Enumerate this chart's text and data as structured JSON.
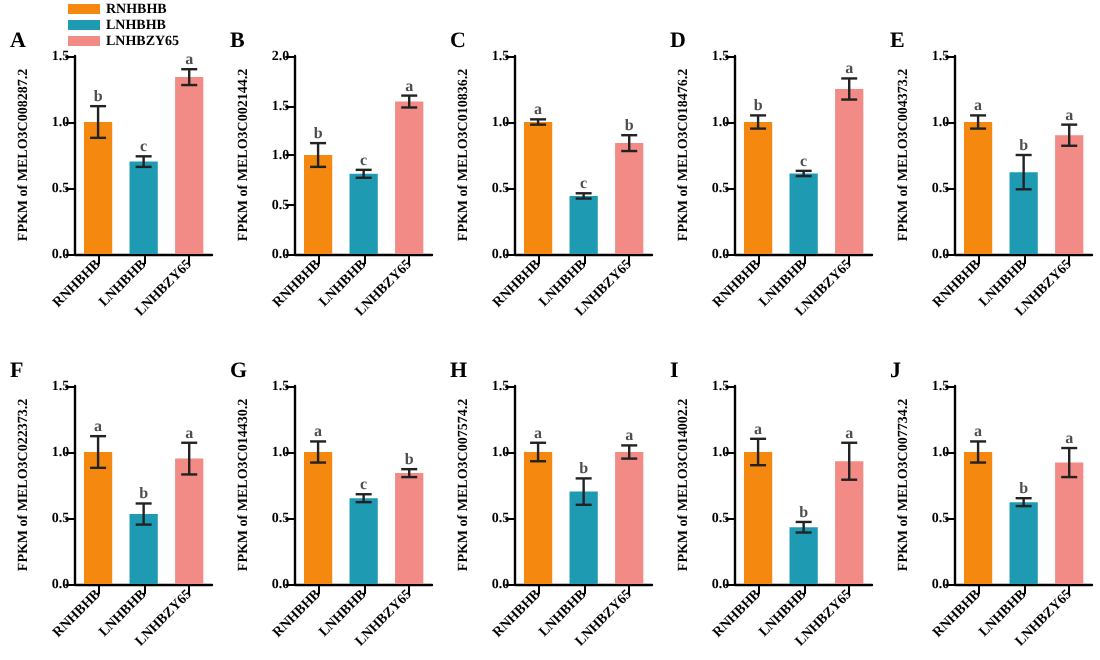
{
  "chart_data": [
    {
      "type": "bar",
      "title": "A",
      "ylabel": "FPKM of MELO3C008287.2",
      "categories": [
        "RNHBHB",
        "LNHBHB",
        "LNHBZY65"
      ],
      "stacked": true,
      "series": [
        {
          "name": "RNHBHB",
          "color": "#f5890f",
          "values": [
            1.0,
            null,
            null
          ],
          "errors": [
            0.12,
            null,
            null
          ]
        },
        {
          "name": "LNHBHB",
          "color": "#1e9bb3",
          "values": [
            null,
            0.7,
            null
          ],
          "errors": [
            null,
            0.04,
            null
          ]
        },
        {
          "name": "LNHBZY65",
          "color": "#f28a85",
          "values": [
            null,
            null,
            1.34
          ],
          "errors": [
            null,
            null,
            0.06
          ]
        }
      ],
      "ylim": [
        0,
        1.5
      ],
      "yticks": [
        {
          "value": 0,
          "label": "0.0"
        },
        {
          "value": 0.5,
          "label": "0.5"
        },
        {
          "value": 1,
          "label": "1.0"
        },
        {
          "value": 1.5,
          "label": "1.5"
        }
      ],
      "legend": "top",
      "annotations": [
        {
          "text": "b",
          "x": "RNHBHB",
          "y": 1.12
        },
        {
          "text": "c",
          "x": "LNHBHB",
          "y": 0.74
        },
        {
          "text": "a",
          "x": "LNHBZY65",
          "y": 1.4
        }
      ]
    },
    {
      "type": "bar",
      "title": "B",
      "ylabel": "FPKM of MELO3C002144.2",
      "categories": [
        "RNHBHB",
        "LNHBHB",
        "LNHBZY65"
      ],
      "values": [
        1.0,
        0.81,
        1.54
      ],
      "errors": [
        0.12,
        0.04,
        0.06
      ],
      "colors": [
        "#f5890f",
        "#1e9bb3",
        "#f28a85"
      ],
      "ylim": [
        0,
        2
      ],
      "yticks": [
        {
          "value": 0,
          "label": "0.0"
        },
        {
          "value": 0.5,
          "label": "0.5"
        },
        {
          "value": 1,
          "label": "1.0"
        },
        {
          "value": 1.5,
          "label": "1.5"
        },
        {
          "value": 2,
          "label": "2.0"
        }
      ],
      "annotations": [
        {
          "text": "b",
          "x": "RNHBHB",
          "y": 1.12
        },
        {
          "text": "c",
          "x": "LNHBHB",
          "y": 0.85
        },
        {
          "text": "a",
          "x": "LNHBZY65",
          "y": 1.6
        }
      ]
    },
    {
      "type": "bar",
      "title": "C",
      "ylabel": "FPKM of MELO3C010836.2",
      "categories": [
        "RNHBHB",
        "LNHBHB",
        "LNHBZY65"
      ],
      "values": [
        1.0,
        0.44,
        0.84
      ],
      "errors": [
        0.02,
        0.02,
        0.06
      ],
      "colors": [
        "#f5890f",
        "#1e9bb3",
        "#f28a85"
      ],
      "ylim": [
        0,
        1.5
      ],
      "yticks": [
        {
          "value": 0,
          "label": "0.0"
        },
        {
          "value": 0.5,
          "label": "0.5"
        },
        {
          "value": 1,
          "label": "1.0"
        },
        {
          "value": 1.5,
          "label": "1.5"
        }
      ],
      "annotations": [
        {
          "text": "a",
          "x": "RNHBHB",
          "y": 1.02
        },
        {
          "text": "c",
          "x": "LNHBHB",
          "y": 0.46
        },
        {
          "text": "b",
          "x": "LNHBZY65",
          "y": 0.9
        }
      ]
    },
    {
      "type": "bar",
      "title": "D",
      "ylabel": "FPKM of MELO3C018476.2",
      "categories": [
        "RNHBHB",
        "LNHBHB",
        "LNHBZY65"
      ],
      "values": [
        1.0,
        0.61,
        1.25
      ],
      "errors": [
        0.05,
        0.02,
        0.08
      ],
      "colors": [
        "#f5890f",
        "#1e9bb3",
        "#f28a85"
      ],
      "ylim": [
        0,
        1.5
      ],
      "yticks": [
        {
          "value": 0,
          "label": "0.0"
        },
        {
          "value": 0.5,
          "label": "0.5"
        },
        {
          "value": 1,
          "label": "1.0"
        },
        {
          "value": 1.5,
          "label": "1.5"
        }
      ],
      "annotations": [
        {
          "text": "b",
          "x": "RNHBHB",
          "y": 1.05
        },
        {
          "text": "c",
          "x": "LNHBHB",
          "y": 0.63
        },
        {
          "text": "a",
          "x": "LNHBZY65",
          "y": 1.33
        }
      ]
    },
    {
      "type": "bar",
      "title": "E",
      "ylabel": "FPKM of MELO3C004373.2",
      "categories": [
        "RNHBHB",
        "LNHBHB",
        "LNHBZY65"
      ],
      "values": [
        1.0,
        0.62,
        0.9
      ],
      "errors": [
        0.05,
        0.13,
        0.08
      ],
      "colors": [
        "#f5890f",
        "#1e9bb3",
        "#f28a85"
      ],
      "ylim": [
        0,
        1.5
      ],
      "yticks": [
        {
          "value": 0,
          "label": "0.0"
        },
        {
          "value": 0.5,
          "label": "0.5"
        },
        {
          "value": 1,
          "label": "1.0"
        },
        {
          "value": 1.5,
          "label": "1.5"
        }
      ],
      "annotations": [
        {
          "text": "a",
          "x": "RNHBHB",
          "y": 1.05
        },
        {
          "text": "b",
          "x": "LNHBHB",
          "y": 0.75
        },
        {
          "text": "a",
          "x": "LNHBZY65",
          "y": 0.98
        }
      ]
    },
    {
      "type": "bar",
      "title": "F",
      "ylabel": "FPKM of MELO3C022373.2",
      "categories": [
        "RNHBHB",
        "LNHBHB",
        "LNHBZY65"
      ],
      "values": [
        1.0,
        0.53,
        0.95
      ],
      "errors": [
        0.12,
        0.08,
        0.12
      ],
      "colors": [
        "#f5890f",
        "#1e9bb3",
        "#f28a85"
      ],
      "ylim": [
        0,
        1.5
      ],
      "yticks": [
        {
          "value": 0,
          "label": "0.0"
        },
        {
          "value": 0.5,
          "label": "0.5"
        },
        {
          "value": 1,
          "label": "1.0"
        },
        {
          "value": 1.5,
          "label": "1.5"
        }
      ],
      "annotations": [
        {
          "text": "a",
          "x": "RNHBHB",
          "y": 1.12
        },
        {
          "text": "b",
          "x": "LNHBHB",
          "y": 0.61
        },
        {
          "text": "a",
          "x": "LNHBZY65",
          "y": 1.07
        }
      ]
    },
    {
      "type": "bar",
      "title": "G",
      "ylabel": "FPKM of MELO3C014430.2",
      "categories": [
        "RNHBHB",
        "LNHBHB",
        "LNHBZY65"
      ],
      "values": [
        1.0,
        0.65,
        0.84
      ],
      "errors": [
        0.08,
        0.03,
        0.03
      ],
      "colors": [
        "#f5890f",
        "#1e9bb3",
        "#f28a85"
      ],
      "ylim": [
        0,
        1.5
      ],
      "yticks": [
        {
          "value": 0,
          "label": "0.0"
        },
        {
          "value": 0.5,
          "label": "0.5"
        },
        {
          "value": 1,
          "label": "1.0"
        },
        {
          "value": 1.5,
          "label": "1.5"
        }
      ],
      "annotations": [
        {
          "text": "a",
          "x": "RNHBHB",
          "y": 1.08
        },
        {
          "text": "c",
          "x": "LNHBHB",
          "y": 0.68
        },
        {
          "text": "b",
          "x": "LNHBZY65",
          "y": 0.87
        }
      ]
    },
    {
      "type": "bar",
      "title": "H",
      "ylabel": "FPKM of MELO3C007574.2",
      "categories": [
        "RNHBHB",
        "LNHBHB",
        "LNHBZY65"
      ],
      "values": [
        1.0,
        0.7,
        1.0
      ],
      "errors": [
        0.07,
        0.1,
        0.05
      ],
      "colors": [
        "#f5890f",
        "#1e9bb3",
        "#f28a85"
      ],
      "ylim": [
        0,
        1.5
      ],
      "yticks": [
        {
          "value": 0,
          "label": "0.0"
        },
        {
          "value": 0.5,
          "label": "0.5"
        },
        {
          "value": 1,
          "label": "1.0"
        },
        {
          "value": 1.5,
          "label": "1.5"
        }
      ],
      "annotations": [
        {
          "text": "a",
          "x": "RNHBHB",
          "y": 1.07
        },
        {
          "text": "b",
          "x": "LNHBHB",
          "y": 0.8
        },
        {
          "text": "a",
          "x": "LNHBZY65",
          "y": 1.05
        }
      ]
    },
    {
      "type": "bar",
      "title": "I",
      "ylabel": "FPKM of MELO3C014002.2",
      "categories": [
        "RNHBHB",
        "LNHBHB",
        "LNHBZY65"
      ],
      "values": [
        1.0,
        0.43,
        0.93
      ],
      "errors": [
        0.1,
        0.04,
        0.14
      ],
      "colors": [
        "#f5890f",
        "#1e9bb3",
        "#f28a85"
      ],
      "ylim": [
        0,
        1.5
      ],
      "yticks": [
        {
          "value": 0,
          "label": "0.0"
        },
        {
          "value": 0.5,
          "label": "0.5"
        },
        {
          "value": 1,
          "label": "1.0"
        },
        {
          "value": 1.5,
          "label": "1.5"
        }
      ],
      "annotations": [
        {
          "text": "a",
          "x": "RNHBHB",
          "y": 1.1
        },
        {
          "text": "b",
          "x": "LNHBHB",
          "y": 0.47
        },
        {
          "text": "a",
          "x": "LNHBZY65",
          "y": 1.07
        }
      ]
    },
    {
      "type": "bar",
      "title": "J",
      "ylabel": "FPKM of MELO3C007734.2",
      "categories": [
        "RNHBHB",
        "LNHBHB",
        "LNHBZY65"
      ],
      "values": [
        1.0,
        0.62,
        0.92
      ],
      "errors": [
        0.08,
        0.03,
        0.11
      ],
      "colors": [
        "#f5890f",
        "#1e9bb3",
        "#f28a85"
      ],
      "ylim": [
        0,
        1.5
      ],
      "yticks": [
        {
          "value": 0,
          "label": "0.0"
        },
        {
          "value": 0.5,
          "label": "0.5"
        },
        {
          "value": 1,
          "label": "1.0"
        },
        {
          "value": 1.5,
          "label": "1.5"
        }
      ],
      "annotations": [
        {
          "text": "a",
          "x": "RNHBHB",
          "y": 1.08
        },
        {
          "text": "b",
          "x": "LNHBHB",
          "y": 0.65
        },
        {
          "text": "a",
          "x": "LNHBZY65",
          "y": 1.03
        }
      ]
    }
  ]
}
